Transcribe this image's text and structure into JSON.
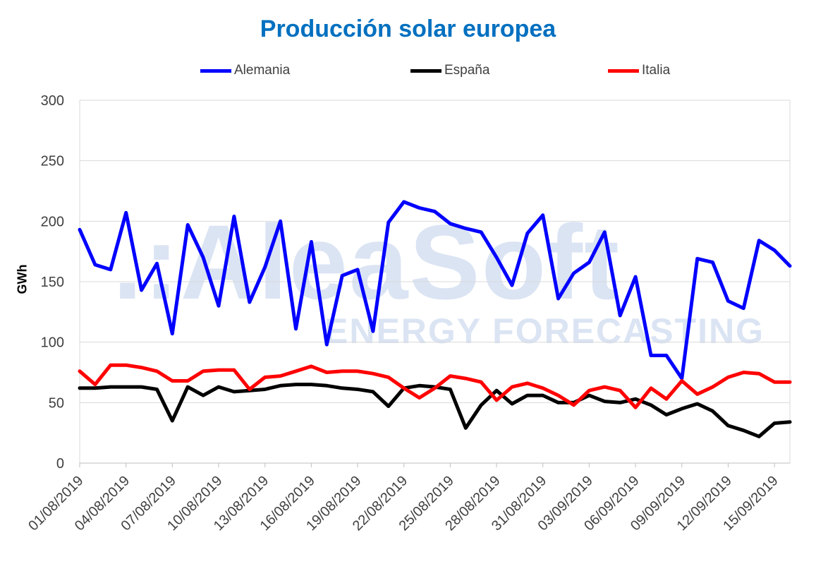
{
  "chart_data": {
    "type": "line",
    "title": "Producción solar europea",
    "ylabel": "GWh",
    "xlabel": "",
    "ylim": [
      0,
      300
    ],
    "yticks": [
      "0",
      "50",
      "100",
      "150",
      "200",
      "250",
      "300"
    ],
    "xtick_labels": [
      "01/08/2019",
      "04/08/2019",
      "07/08/2019",
      "10/08/2019",
      "13/08/2019",
      "16/08/2019",
      "19/08/2019",
      "22/08/2019",
      "25/08/2019",
      "28/08/2019",
      "31/08/2019",
      "03/09/2019",
      "06/09/2019",
      "09/09/2019",
      "12/09/2019",
      "15/09/2019"
    ],
    "legend_position": "top",
    "grid": "horizontal",
    "watermark": {
      "line1": ".:AleaSoft",
      "line2": "ENERGY FORECASTING"
    },
    "x": [
      "01/08/2019",
      "02/08/2019",
      "03/08/2019",
      "04/08/2019",
      "05/08/2019",
      "06/08/2019",
      "07/08/2019",
      "08/08/2019",
      "09/08/2019",
      "10/08/2019",
      "11/08/2019",
      "12/08/2019",
      "13/08/2019",
      "14/08/2019",
      "15/08/2019",
      "16/08/2019",
      "17/08/2019",
      "18/08/2019",
      "19/08/2019",
      "20/08/2019",
      "21/08/2019",
      "22/08/2019",
      "23/08/2019",
      "24/08/2019",
      "25/08/2019",
      "26/08/2019",
      "27/08/2019",
      "28/08/2019",
      "29/08/2019",
      "30/08/2019",
      "31/08/2019",
      "01/09/2019",
      "02/09/2019",
      "03/09/2019",
      "04/09/2019",
      "05/09/2019",
      "06/09/2019",
      "07/09/2019",
      "08/09/2019",
      "09/09/2019",
      "10/09/2019",
      "11/09/2019",
      "12/09/2019",
      "13/09/2019",
      "14/09/2019",
      "15/09/2019",
      "16/09/2019"
    ],
    "series": [
      {
        "name": "Alemania",
        "color": "#0000FF",
        "values": [
          193,
          164,
          160,
          207,
          143,
          165,
          107,
          197,
          170,
          130,
          204,
          133,
          162,
          200,
          111,
          183,
          98,
          155,
          160,
          109,
          199,
          216,
          211,
          208,
          198,
          194,
          191,
          170,
          147,
          190,
          205,
          136,
          157,
          166,
          191,
          122,
          154,
          89,
          89,
          70,
          169,
          166,
          134,
          128,
          184,
          176,
          163
        ]
      },
      {
        "name": "España",
        "color": "#000000",
        "values": [
          62,
          62,
          63,
          63,
          63,
          61,
          35,
          63,
          56,
          63,
          59,
          60,
          61,
          64,
          65,
          65,
          64,
          62,
          61,
          59,
          47,
          62,
          64,
          63,
          61,
          29,
          48,
          60,
          49,
          56,
          56,
          50,
          50,
          56,
          51,
          50,
          53,
          48,
          40,
          45,
          49,
          43,
          31,
          27,
          22,
          33,
          34
        ]
      },
      {
        "name": "Italia",
        "color": "#FF0000",
        "values": [
          76,
          65,
          81,
          81,
          79,
          76,
          68,
          68,
          76,
          77,
          77,
          61,
          71,
          72,
          76,
          80,
          75,
          76,
          76,
          74,
          71,
          62,
          54,
          62,
          72,
          70,
          67,
          52,
          63,
          66,
          62,
          56,
          48,
          60,
          63,
          60,
          46,
          62,
          53,
          68,
          57,
          63,
          71,
          75,
          74,
          67,
          67
        ]
      }
    ]
  }
}
